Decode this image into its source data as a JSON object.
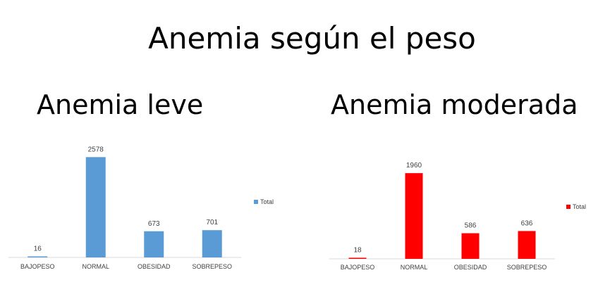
{
  "title": "Anemia según el peso",
  "chart_data": [
    {
      "type": "bar",
      "title": "Anemia leve",
      "categories": [
        "BAJOPESO",
        "NORMAL",
        "OBESIDAD",
        "SOBREPESO"
      ],
      "series": [
        {
          "name": "Total",
          "values": [
            16,
            2578,
            673,
            701
          ],
          "color": "#5B9BD5"
        }
      ],
      "data_labels": [
        "16",
        "2578",
        "673",
        "701"
      ],
      "legend": "right",
      "grid": false,
      "ylim": [
        0,
        3000
      ]
    },
    {
      "type": "bar",
      "title": "Anemia moderada",
      "categories": [
        "BAJOPESO",
        "NORMAL",
        "OBESIDAD",
        "SOBREPESO"
      ],
      "series": [
        {
          "name": "Total",
          "values": [
            18,
            1960,
            586,
            636
          ],
          "color": "#FF0000"
        }
      ],
      "data_labels": [
        "18",
        "1960",
        "586",
        "636"
      ],
      "legend": "right",
      "grid": false,
      "ylim": [
        0,
        2300
      ]
    }
  ]
}
